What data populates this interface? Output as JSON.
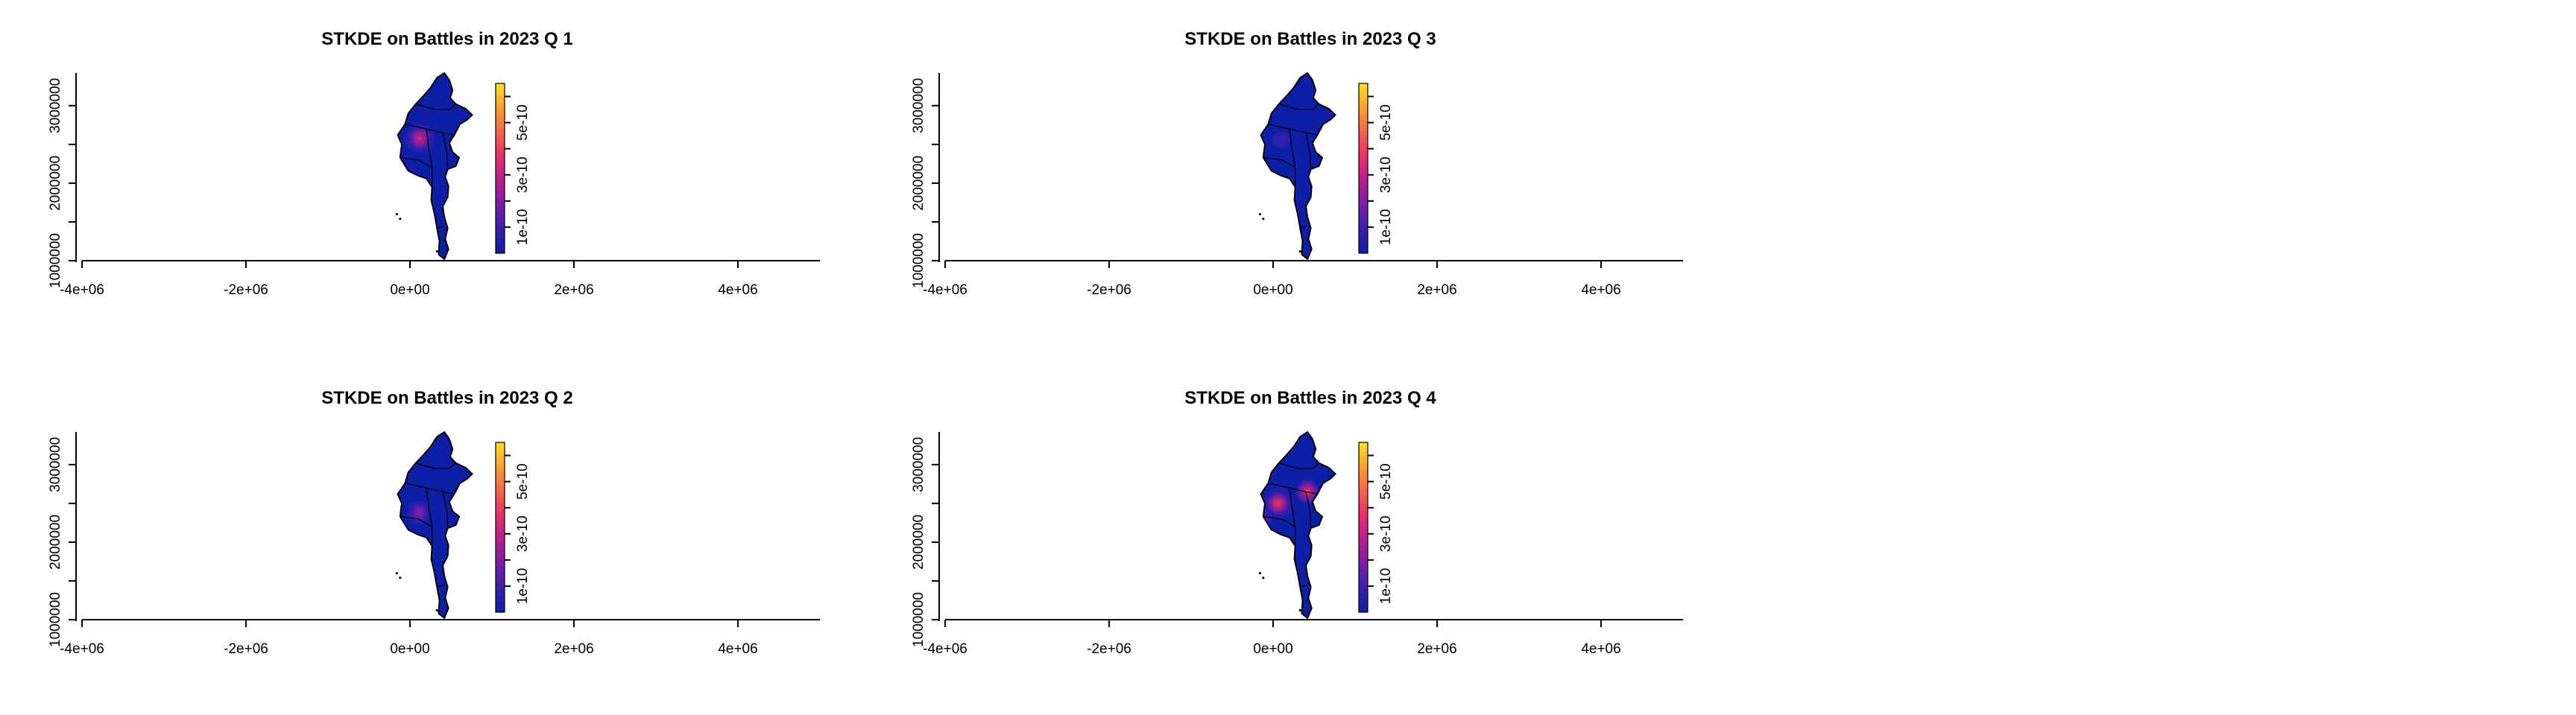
{
  "chart_data": [
    {
      "type": "heatmap",
      "title": "STKDE on Battles in 2023 Q 1",
      "x_ticks": [
        -4000000,
        -2000000,
        0,
        2000000,
        4000000
      ],
      "x_tick_labels": [
        "-4e+06",
        "-2e+06",
        "0e+00",
        "2e+06",
        "4e+06"
      ],
      "y_ticks": [
        1000000,
        2000000,
        3000000
      ],
      "y_tick_labels": [
        "1000000",
        "2000000",
        "3000000"
      ],
      "xlim": [
        -4000000,
        5000000
      ],
      "ylim": [
        1000000,
        3450000
      ],
      "colorbar": {
        "range": [
          0,
          6.5e-10
        ],
        "ticks": [
          1e-10,
          3e-10,
          5e-10
        ],
        "tick_labels": [
          "1e-10",
          "3e-10",
          "5e-10"
        ]
      },
      "hotspots": [
        {
          "x": 120000,
          "y": 2580000,
          "intensity": 0.55,
          "spread": 85000
        }
      ]
    },
    {
      "type": "heatmap",
      "title": "STKDE on Battles in 2023 Q 3",
      "x_ticks": [
        -4000000,
        -2000000,
        0,
        2000000,
        4000000
      ],
      "x_tick_labels": [
        "-4e+06",
        "-2e+06",
        "0e+00",
        "2e+06",
        "4e+06"
      ],
      "y_ticks": [
        1000000,
        2000000,
        3000000
      ],
      "y_tick_labels": [
        "1000000",
        "2000000",
        "3000000"
      ],
      "xlim": [
        -4000000,
        5000000
      ],
      "ylim": [
        1000000,
        3450000
      ],
      "colorbar": {
        "range": [
          0,
          6.5e-10
        ],
        "ticks": [
          1e-10,
          3e-10,
          5e-10
        ],
        "tick_labels": [
          "1e-10",
          "3e-10",
          "5e-10"
        ]
      },
      "hotspots": [
        {
          "x": 100000,
          "y": 2560000,
          "intensity": 0.2,
          "spread": 75000
        }
      ]
    },
    {
      "type": "heatmap",
      "title": "STKDE on Battles in 2023 Q 2",
      "x_ticks": [
        -4000000,
        -2000000,
        0,
        2000000,
        4000000
      ],
      "x_tick_labels": [
        "-4e+06",
        "-2e+06",
        "0e+00",
        "2e+06",
        "4e+06"
      ],
      "y_ticks": [
        1000000,
        2000000,
        3000000
      ],
      "y_tick_labels": [
        "1000000",
        "2000000",
        "3000000"
      ],
      "xlim": [
        -4000000,
        5000000
      ],
      "ylim": [
        1000000,
        3450000
      ],
      "colorbar": {
        "range": [
          0,
          6.5e-10
        ],
        "ticks": [
          1e-10,
          3e-10,
          5e-10
        ],
        "tick_labels": [
          "1e-10",
          "3e-10",
          "5e-10"
        ]
      },
      "hotspots": [
        {
          "x": 110000,
          "y": 2380000,
          "intensity": 0.35,
          "spread": 80000
        }
      ]
    },
    {
      "type": "heatmap",
      "title": "STKDE on Battles in 2023 Q 4",
      "x_ticks": [
        -4000000,
        -2000000,
        0,
        2000000,
        4000000
      ],
      "x_tick_labels": [
        "-4e+06",
        "-2e+06",
        "0e+00",
        "2e+06",
        "4e+06"
      ],
      "y_ticks": [
        1000000,
        2000000,
        3000000
      ],
      "y_tick_labels": [
        "1000000",
        "2000000",
        "3000000"
      ],
      "xlim": [
        -4000000,
        5000000
      ],
      "ylim": [
        1000000,
        3450000
      ],
      "colorbar": {
        "range": [
          0,
          6.5e-10
        ],
        "ticks": [
          1e-10,
          3e-10,
          5e-10
        ],
        "tick_labels": [
          "1e-10",
          "3e-10",
          "5e-10"
        ]
      },
      "hotspots": [
        {
          "x": 60000,
          "y": 2500000,
          "intensity": 0.62,
          "spread": 90000
        },
        {
          "x": 420000,
          "y": 2650000,
          "intensity": 0.72,
          "spread": 70000
        },
        {
          "x": -120000,
          "y": 2300000,
          "intensity": 0.3,
          "spread": 60000
        }
      ]
    }
  ],
  "colormap": [
    "#0d1fa6",
    "#3a1fb0",
    "#7a1fa8",
    "#b81f8f",
    "#e8306a",
    "#f5654a",
    "#f8a030",
    "#ffe020"
  ]
}
